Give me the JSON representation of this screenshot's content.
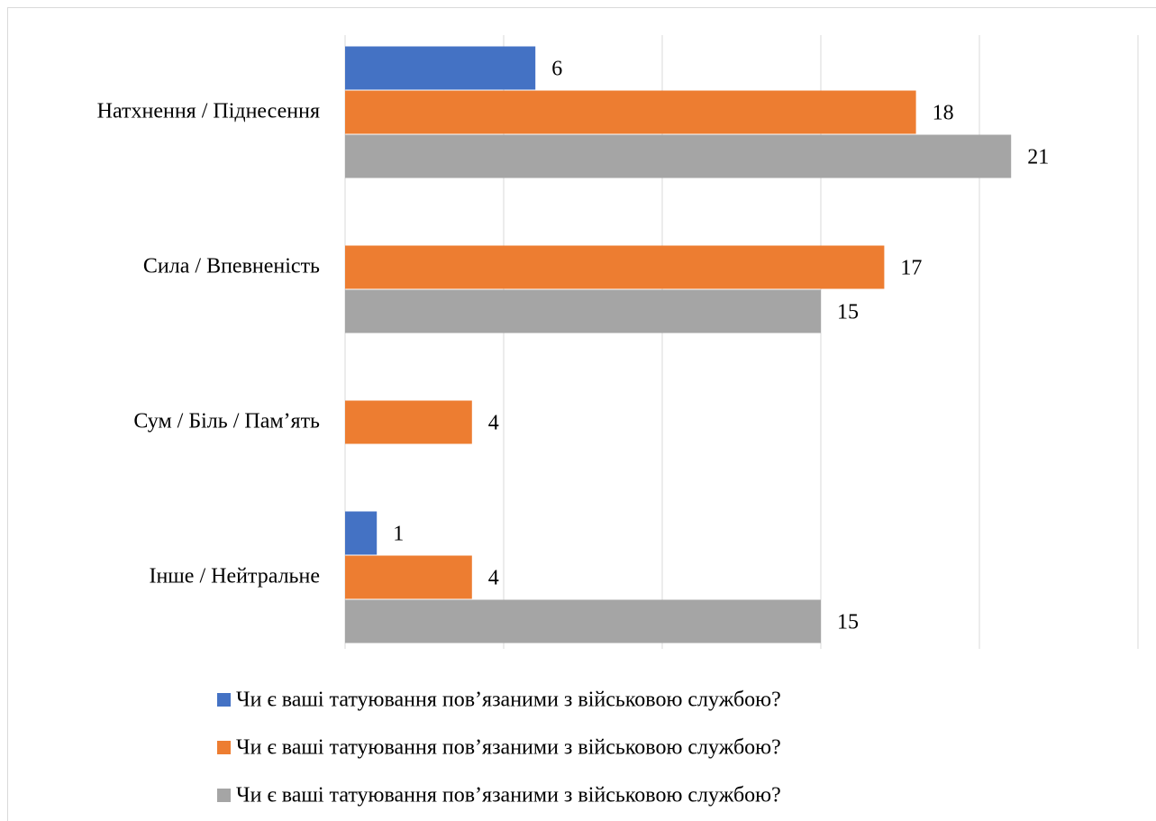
{
  "chart_data": {
    "type": "bar",
    "orientation": "horizontal",
    "categories": [
      "Натхнення / Піднесення",
      "Сила / Впевненість",
      "Сум / Біль / Пам’ять",
      "Інше / Нейтральне"
    ],
    "series": [
      {
        "name": "Чи є ваші татуювання пов’язаними з військовою службою?",
        "color": "#4472c4",
        "values": [
          6,
          null,
          null,
          1
        ]
      },
      {
        "name": "Чи є ваші татуювання пов’язаними з військовою службою?",
        "color": "#ed7d31",
        "values": [
          18,
          17,
          4,
          4
        ]
      },
      {
        "name": "Чи є ваші татуювання пов’язаними з військовою службою?",
        "color": "#a5a5a5",
        "values": [
          21,
          15,
          null,
          15
        ]
      }
    ],
    "xlim": [
      0,
      25
    ],
    "xticks": [
      0,
      5,
      10,
      15,
      20,
      25
    ],
    "grid": true,
    "legend": "bottom"
  }
}
